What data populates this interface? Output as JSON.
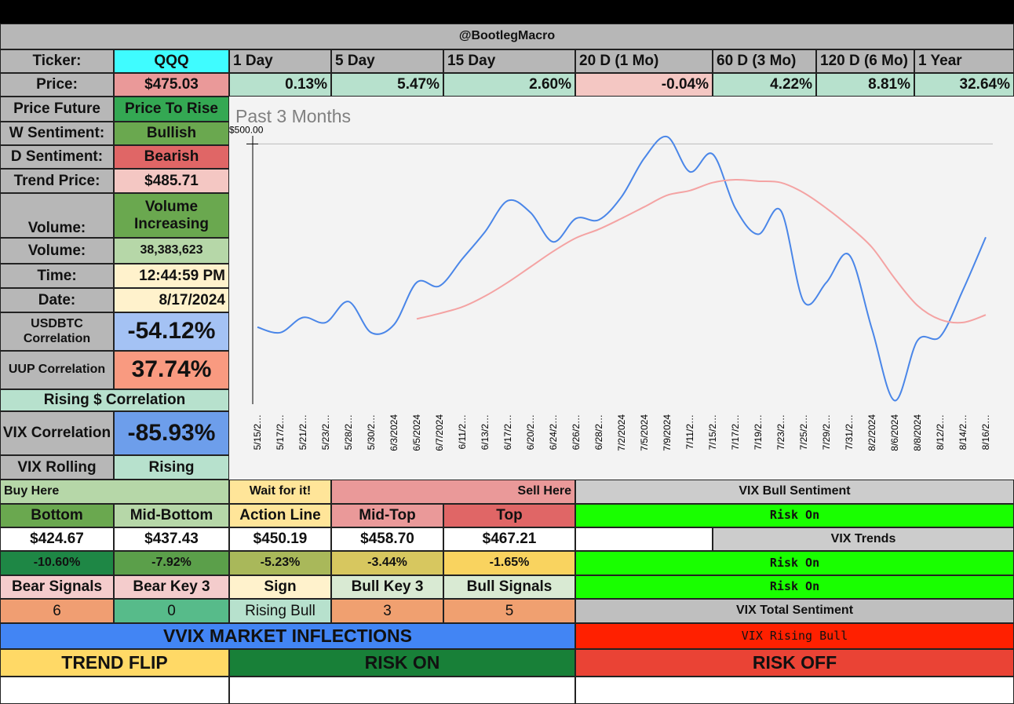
{
  "header": {
    "title": "@BootlegMacro"
  },
  "ticker": {
    "label": "Ticker:",
    "value": "QQQ"
  },
  "price": {
    "label": "Price:",
    "value": "$475.03"
  },
  "periods": [
    {
      "label": "1 Day",
      "change": "0.13%"
    },
    {
      "label": "5 Day",
      "change": "5.47%"
    },
    {
      "label": "15 Day",
      "change": "2.60%"
    },
    {
      "label": "20 D (1 Mo)",
      "change": "-0.04%"
    },
    {
      "label": "60 D (3 Mo)",
      "change": "4.22%"
    },
    {
      "label": "120 D (6 Mo)",
      "change": "8.81%"
    },
    {
      "label": "1 Year",
      "change": "32.64%"
    }
  ],
  "left": {
    "price_future": {
      "label": "Price Future",
      "value": "Price To Rise"
    },
    "w_sentiment": {
      "label": "W Sentiment:",
      "value": "Bullish"
    },
    "d_sentiment": {
      "label": "D Sentiment:",
      "value": "Bearish"
    },
    "trend_price": {
      "label": "Trend Price:",
      "value": "$485.71"
    },
    "volume_trend": {
      "label": "Volume:",
      "value": "Volume Increasing"
    },
    "volume": {
      "label": "Volume:",
      "value": "38,383,623"
    },
    "time": {
      "label": "Time:",
      "value": "12:44:59 PM"
    },
    "date": {
      "label": "Date:",
      "value": "8/17/2024"
    },
    "usdbtc": {
      "label": "USDBTC Correlation",
      "value": "-54.12%"
    },
    "uup": {
      "label": "UUP Correlation",
      "value": "37.74%"
    },
    "rising_corr": "Rising $ Correlation",
    "vix_corr": {
      "label": "VIX Correlation",
      "value": "-85.93%"
    },
    "vix_rolling": {
      "label": "VIX Rolling",
      "value": "Rising"
    }
  },
  "levels": {
    "buy_here": "Buy Here",
    "wait": "Wait for it!",
    "sell_here": "Sell Here",
    "names": [
      "Bottom",
      "Mid-Bottom",
      "Action Line",
      "Mid-Top",
      "Top"
    ],
    "prices": [
      "$424.67",
      "$437.43",
      "$450.19",
      "$458.70",
      "$467.21"
    ],
    "pcts": [
      "-10.60%",
      "-7.92%",
      "-5.23%",
      "-3.44%",
      "-1.65%"
    ]
  },
  "signals": {
    "headers": [
      "Bear Signals",
      "Bear Key 3",
      "Sign",
      "Bull Key 3",
      "Bull Signals"
    ],
    "values": [
      "6",
      "0",
      "Rising Bull",
      "3",
      "5"
    ]
  },
  "inflections": {
    "title": "VVIX MARKET INFLECTIONS",
    "trend_flip": "TREND FLIP",
    "risk_on": "RISK ON",
    "risk_off": "RISK OFF"
  },
  "vix": {
    "bull_sentiment_label": "VIX Bull Sentiment",
    "bull_sentiment": "Risk On",
    "trends_label": "VIX Trends",
    "trend_1": "Risk On",
    "trend_2": "Risk On",
    "total_label": "VIX Total Sentiment",
    "total": "VIX Rising Bull"
  },
  "colors": {
    "header_gray": "#b7b7b7",
    "cyan": "#3ffcff",
    "pink": "#ea9999",
    "light_green": "#b7e1cd",
    "light_red": "#f4c7c3",
    "green": "#6aa84f",
    "red": "#e06666",
    "blue": "#6d9eeb",
    "vix_green": "#19ff00",
    "vix_red": "#ff2000",
    "price_line": "#4a86e8",
    "ma_line": "#f4a3a3"
  },
  "chart_data": {
    "type": "line",
    "title": "Past 3 Months",
    "x": [
      "5/15/2024",
      "5/17/2024",
      "5/21/2024",
      "5/23/2024",
      "5/28/2024",
      "5/30/2024",
      "6/3/2024",
      "6/5/2024",
      "6/7/2024",
      "6/11/2024",
      "6/13/2024",
      "6/17/2024",
      "6/20/2024",
      "6/24/2024",
      "6/26/2024",
      "6/28/2024",
      "7/2/2024",
      "7/5/2024",
      "7/9/2024",
      "7/11/2024",
      "7/15/2024",
      "7/17/2024",
      "7/19/2024",
      "7/23/2024",
      "7/25/2024",
      "7/29/2024",
      "7/31/2024",
      "8/2/2024",
      "8/6/2024",
      "8/8/2024",
      "8/12/2024",
      "8/14/2024",
      "8/16/2024"
    ],
    "x_tick_labels": [
      "5/15/2…",
      "5/17/2…",
      "5/21/2…",
      "5/23/2…",
      "5/28/2…",
      "5/30/2…",
      "6/3/2024",
      "6/5/2024",
      "6/7/2024",
      "6/11/2…",
      "6/13/2…",
      "6/17/2…",
      "6/20/2…",
      "6/24/2…",
      "6/26/2…",
      "6/28/2…",
      "7/2/2024",
      "7/5/2024",
      "7/9/2024",
      "7/11/2…",
      "7/15/2…",
      "7/17/2…",
      "7/19/2…",
      "7/23/2…",
      "7/25/2…",
      "7/29/2…",
      "7/31/2…",
      "8/2/2024",
      "8/6/2024",
      "8/8/2024",
      "8/12/2…",
      "8/14/2…",
      "8/16/2…"
    ],
    "series": [
      {
        "values": [
          449.3,
          447.8,
          452,
          450.6,
          456.4,
          447.8,
          450,
          461.7,
          460.7,
          468.2,
          475.7,
          484.3,
          481,
          472.9,
          479.4,
          479,
          485.4,
          496.1,
          502,
          492.3,
          497.2,
          482.2,
          475,
          481.5,
          456.4,
          461.7,
          469.3,
          448.8,
          429,
          445.6,
          446.7,
          459.6,
          474.2
        ],
        "color": "#4a86e8"
      },
      {
        "values": [
          null,
          null,
          null,
          null,
          null,
          null,
          null,
          451.6,
          453.1,
          454.9,
          457.9,
          461.7,
          466,
          470.3,
          474,
          476.4,
          479.4,
          482.6,
          485.8,
          487.1,
          489.3,
          490.1,
          489.7,
          489.3,
          486.5,
          482.2,
          477.2,
          471.4,
          462.8,
          455.3,
          451.4,
          450.6,
          452.7
        ],
        "color": "#f4a3a3"
      }
    ],
    "y_tick_labels": [
      "$500.00"
    ],
    "y_ticks": [
      500
    ],
    "ylim": [
      428,
      504
    ],
    "grid": true
  }
}
